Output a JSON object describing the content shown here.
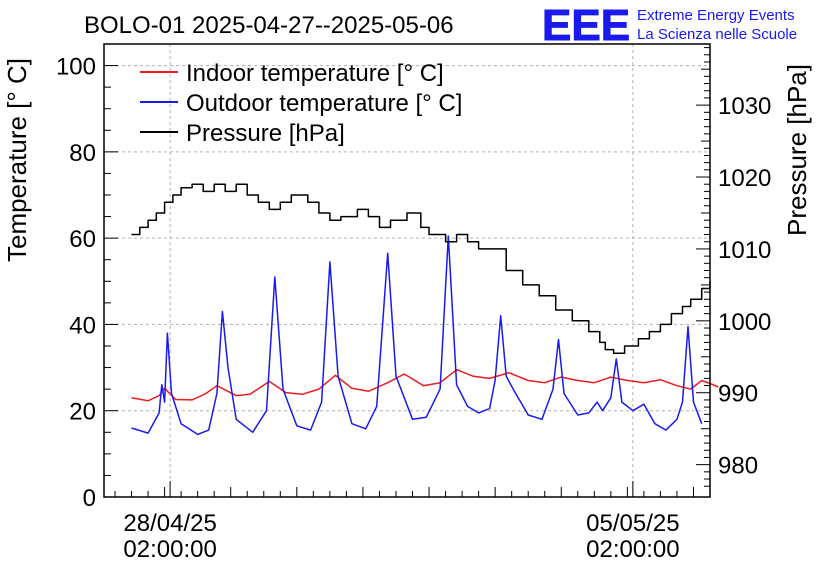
{
  "chart_data": {
    "type": "line",
    "title": "BOLO-01 2025-04-27--2025-05-06",
    "ylabel": "Temperature [° C]",
    "y2label": "Pressure [hPa]",
    "ylim": [
      0,
      105
    ],
    "y2lim": [
      975.5,
      1038.5
    ],
    "yticks": [
      "0",
      "20",
      "40",
      "60",
      "80",
      "100"
    ],
    "y2ticks": [
      "980",
      "990",
      "1000",
      "1010",
      "1020",
      "1030"
    ],
    "xlim": [
      "2025-04-27 02:00",
      "2025-05-06 06:00"
    ],
    "xticks": [
      {
        "at": "2025-04-28 02:00",
        "line1": "28/04/25",
        "line2": "02:00:00"
      },
      {
        "at": "2025-05-05 02:00",
        "line1": "05/05/25",
        "line2": "02:00:00"
      }
    ],
    "grid": true,
    "legend_position": "top-left",
    "series": [
      {
        "name": "Indoor temperature [° C]",
        "color": "#ee1c1c",
        "axis": "left",
        "points": [
          [
            "2025-04-27 12:00",
            23.0
          ],
          [
            "2025-04-27 18:00",
            22.3
          ],
          [
            "2025-04-27 22:00",
            23.5
          ],
          [
            "2025-04-28 00:00",
            25.2
          ],
          [
            "2025-04-28 04:00",
            22.6
          ],
          [
            "2025-04-28 10:00",
            22.5
          ],
          [
            "2025-04-28 15:00",
            24.0
          ],
          [
            "2025-04-28 19:00",
            25.8
          ],
          [
            "2025-04-29 02:00",
            23.5
          ],
          [
            "2025-04-29 07:00",
            23.8
          ],
          [
            "2025-04-29 14:00",
            26.8
          ],
          [
            "2025-04-29 20:00",
            24.2
          ],
          [
            "2025-04-30 02:00",
            23.8
          ],
          [
            "2025-04-30 08:00",
            25.0
          ],
          [
            "2025-04-30 14:00",
            28.2
          ],
          [
            "2025-04-30 20:00",
            25.2
          ],
          [
            "2025-05-01 02:00",
            24.5
          ],
          [
            "2025-05-01 09:00",
            26.5
          ],
          [
            "2025-05-01 15:00",
            28.5
          ],
          [
            "2025-05-01 22:00",
            25.8
          ],
          [
            "2025-05-02 04:00",
            26.5
          ],
          [
            "2025-05-02 10:00",
            29.5
          ],
          [
            "2025-05-02 16:00",
            28.0
          ],
          [
            "2025-05-02 22:00",
            27.5
          ],
          [
            "2025-05-03 05:00",
            28.8
          ],
          [
            "2025-05-03 12:00",
            27.0
          ],
          [
            "2025-05-03 18:00",
            26.5
          ],
          [
            "2025-05-04 00:00",
            27.8
          ],
          [
            "2025-05-04 06:00",
            27.0
          ],
          [
            "2025-05-04 12:00",
            26.5
          ],
          [
            "2025-05-04 18:00",
            27.8
          ],
          [
            "2025-05-05 00:00",
            27.0
          ],
          [
            "2025-05-05 06:00",
            26.5
          ],
          [
            "2025-05-05 12:00",
            27.2
          ],
          [
            "2025-05-05 18:00",
            25.8
          ],
          [
            "2025-05-05 23:00",
            25.0
          ],
          [
            "2025-05-06 03:00",
            27.0
          ],
          [
            "2025-05-06 06:00",
            26.3
          ],
          [
            "2025-05-06 09:00",
            25.5
          ]
        ]
      },
      {
        "name": "Outdoor temperature [° C]",
        "color": "#1a1aee",
        "axis": "left",
        "points": [
          [
            "2025-04-27 12:00",
            16.0
          ],
          [
            "2025-04-27 18:00",
            14.8
          ],
          [
            "2025-04-27 22:00",
            19.5
          ],
          [
            "2025-04-27 23:00",
            26.0
          ],
          [
            "2025-04-28 00:00",
            22.0
          ],
          [
            "2025-04-28 01:00",
            38.0
          ],
          [
            "2025-04-28 02:30",
            24.0
          ],
          [
            "2025-04-28 06:00",
            17.0
          ],
          [
            "2025-04-28 12:00",
            14.5
          ],
          [
            "2025-04-28 16:00",
            15.5
          ],
          [
            "2025-04-28 19:00",
            24.0
          ],
          [
            "2025-04-28 21:00",
            43.0
          ],
          [
            "2025-04-28 23:00",
            30.0
          ],
          [
            "2025-04-29 02:00",
            18.0
          ],
          [
            "2025-04-29 08:00",
            15.0
          ],
          [
            "2025-04-29 13:00",
            20.0
          ],
          [
            "2025-04-29 16:00",
            51.0
          ],
          [
            "2025-04-29 19:00",
            25.0
          ],
          [
            "2025-04-30 00:00",
            16.5
          ],
          [
            "2025-04-30 05:00",
            15.5
          ],
          [
            "2025-04-30 09:00",
            22.0
          ],
          [
            "2025-04-30 12:00",
            54.5
          ],
          [
            "2025-04-30 15:00",
            28.0
          ],
          [
            "2025-04-30 20:00",
            17.0
          ],
          [
            "2025-05-01 01:00",
            15.8
          ],
          [
            "2025-05-01 05:00",
            21.0
          ],
          [
            "2025-05-01 09:00",
            56.5
          ],
          [
            "2025-05-01 12:00",
            28.0
          ],
          [
            "2025-05-01 18:00",
            18.0
          ],
          [
            "2025-05-01 23:00",
            18.5
          ],
          [
            "2025-05-02 04:00",
            25.0
          ],
          [
            "2025-05-02 07:00",
            60.5
          ],
          [
            "2025-05-02 10:00",
            26.0
          ],
          [
            "2025-05-02 14:00",
            21.0
          ],
          [
            "2025-05-02 18:00",
            19.5
          ],
          [
            "2025-05-02 22:00",
            20.5
          ],
          [
            "2025-05-03 00:00",
            27.0
          ],
          [
            "2025-05-03 02:00",
            42.0
          ],
          [
            "2025-05-03 04:00",
            28.0
          ],
          [
            "2025-05-03 07:00",
            24.5
          ],
          [
            "2025-05-03 12:00",
            19.0
          ],
          [
            "2025-05-03 17:00",
            18.0
          ],
          [
            "2025-05-03 21:00",
            25.0
          ],
          [
            "2025-05-03 23:00",
            36.5
          ],
          [
            "2025-05-04 01:00",
            24.0
          ],
          [
            "2025-05-04 06:00",
            19.0
          ],
          [
            "2025-05-04 10:00",
            19.5
          ],
          [
            "2025-05-04 13:00",
            22.0
          ],
          [
            "2025-05-04 15:00",
            20.0
          ],
          [
            "2025-05-04 18:00",
            23.0
          ],
          [
            "2025-05-04 20:00",
            32.0
          ],
          [
            "2025-05-04 22:00",
            22.0
          ],
          [
            "2025-05-05 02:00",
            20.0
          ],
          [
            "2025-05-05 06:00",
            21.5
          ],
          [
            "2025-05-05 10:00",
            17.0
          ],
          [
            "2025-05-05 14:00",
            15.5
          ],
          [
            "2025-05-05 18:00",
            18.0
          ],
          [
            "2025-05-05 20:00",
            22.0
          ],
          [
            "2025-05-05 22:00",
            39.5
          ],
          [
            "2025-05-06 00:00",
            22.0
          ],
          [
            "2025-05-06 03:00",
            17.0
          ]
        ]
      },
      {
        "name": "Pressure [hPa]",
        "color": "#000000",
        "axis": "right",
        "step": true,
        "points": [
          [
            "2025-04-27 12:00",
            1012.0
          ],
          [
            "2025-04-27 15:00",
            1013.0
          ],
          [
            "2025-04-27 18:00",
            1014.0
          ],
          [
            "2025-04-27 21:00",
            1015.0
          ],
          [
            "2025-04-28 00:00",
            1016.5
          ],
          [
            "2025-04-28 03:00",
            1017.5
          ],
          [
            "2025-04-28 06:00",
            1018.5
          ],
          [
            "2025-04-28 10:00",
            1019.0
          ],
          [
            "2025-04-28 14:00",
            1018.0
          ],
          [
            "2025-04-28 18:00",
            1019.0
          ],
          [
            "2025-04-28 22:00",
            1018.0
          ],
          [
            "2025-04-29 02:00",
            1019.0
          ],
          [
            "2025-04-29 06:00",
            1017.5
          ],
          [
            "2025-04-29 10:00",
            1016.5
          ],
          [
            "2025-04-29 14:00",
            1015.5
          ],
          [
            "2025-04-29 18:00",
            1016.5
          ],
          [
            "2025-04-29 22:00",
            1017.5
          ],
          [
            "2025-04-30 04:00",
            1016.5
          ],
          [
            "2025-04-30 08:00",
            1015.0
          ],
          [
            "2025-04-30 12:00",
            1014.0
          ],
          [
            "2025-04-30 16:00",
            1014.5
          ],
          [
            "2025-04-30 22:00",
            1015.5
          ],
          [
            "2025-05-01 02:00",
            1014.5
          ],
          [
            "2025-05-01 06:00",
            1013.0
          ],
          [
            "2025-05-01 10:00",
            1014.0
          ],
          [
            "2025-05-01 16:00",
            1015.0
          ],
          [
            "2025-05-01 21:00",
            1013.0
          ],
          [
            "2025-05-02 00:00",
            1012.0
          ],
          [
            "2025-05-02 06:00",
            1011.0
          ],
          [
            "2025-05-02 10:00",
            1012.0
          ],
          [
            "2025-05-02 14:00",
            1011.0
          ],
          [
            "2025-05-02 18:00",
            1010.0
          ],
          [
            "2025-05-02 22:00",
            1010.0
          ],
          [
            "2025-05-03 04:00",
            1007.0
          ],
          [
            "2025-05-03 10:00",
            1005.0
          ],
          [
            "2025-05-03 16:00",
            1003.5
          ],
          [
            "2025-05-03 22:00",
            1001.5
          ],
          [
            "2025-05-04 04:00",
            1000.0
          ],
          [
            "2025-05-04 10:00",
            998.5
          ],
          [
            "2025-05-04 14:00",
            997.0
          ],
          [
            "2025-05-04 16:00",
            996.0
          ],
          [
            "2025-05-04 19:00",
            995.5
          ],
          [
            "2025-05-04 23:00",
            996.5
          ],
          [
            "2025-05-05 04:00",
            997.5
          ],
          [
            "2025-05-05 08:00",
            998.5
          ],
          [
            "2025-05-05 12:00",
            999.5
          ],
          [
            "2025-05-05 16:00",
            1001.0
          ],
          [
            "2025-05-05 20:00",
            1002.0
          ],
          [
            "2025-05-05 23:00",
            1003.0
          ],
          [
            "2025-05-06 03:00",
            1004.5
          ],
          [
            "2025-05-06 06:00",
            1005.5
          ]
        ]
      }
    ]
  },
  "logo": {
    "mark": "EEE",
    "line1": "Extreme Energy Events",
    "line2": "La Scienza nelle Scuole",
    "color": "#1a1aee"
  }
}
